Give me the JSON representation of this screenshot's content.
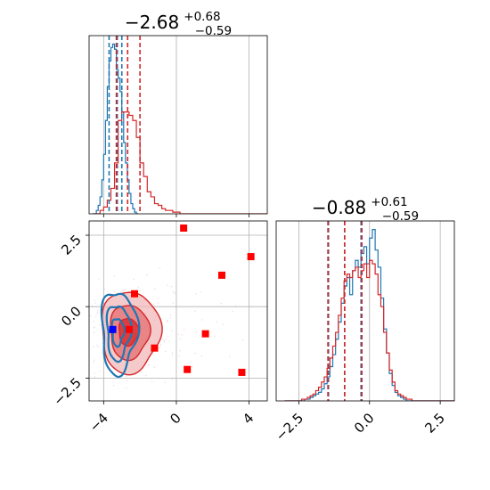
{
  "chart_data": [
    {
      "panel": "marginal-x",
      "type": "histogram",
      "title": {
        "value": "−2.68",
        "plus": "+0.68",
        "minus": "−0.59"
      },
      "xlim": [
        -4.8,
        5.0
      ],
      "ylim": [
        0,
        1.05
      ],
      "grid": true,
      "series": [
        {
          "color": "#1f77b4",
          "bin_start": -4.6,
          "bin_width": 0.1,
          "values": [
            0.0,
            0.0,
            0.02,
            0.05,
            0.1,
            0.2,
            0.35,
            0.55,
            0.75,
            0.9,
            0.98,
            1.0,
            0.97,
            0.85,
            0.8,
            0.72,
            0.6,
            0.42,
            0.3,
            0.2,
            0.12,
            0.06,
            0.03,
            0.01,
            0.0
          ],
          "quantile_lines": [
            -3.7,
            -3.25,
            -3.0
          ]
        },
        {
          "color": "#d62728",
          "bin_start": -4.6,
          "bin_width": 0.2,
          "values": [
            0.0,
            0.0,
            0.02,
            0.04,
            0.08,
            0.15,
            0.3,
            0.55,
            0.6,
            0.6,
            0.58,
            0.55,
            0.45,
            0.3,
            0.22,
            0.13,
            0.1,
            0.06,
            0.05,
            0.03,
            0.02,
            0.02,
            0.01,
            0.01,
            0.0,
            0.0,
            0.0,
            0.0,
            0.0,
            0.0,
            0.0,
            0.0,
            0.0,
            0.0,
            0.0,
            0.0,
            0.0,
            0.0,
            0.0,
            0.0,
            0.0,
            0.0,
            0.0,
            0.0,
            0.0,
            0.0,
            0.0,
            0.0,
            0.0
          ],
          "quantile_lines": [
            -3.3,
            -2.68,
            -2.0
          ]
        }
      ]
    },
    {
      "panel": "marginal-y",
      "type": "histogram",
      "title": {
        "value": "−0.88",
        "plus": "+0.61",
        "minus": "−0.59"
      },
      "xlim": [
        -3.3,
        3.0
      ],
      "ylim": [
        0,
        1.05
      ],
      "grid": true,
      "xticks": [
        "−2.5",
        "0.0",
        "2.5"
      ],
      "series": [
        {
          "color": "#1f77b4",
          "bin_start": -3.0,
          "bin_width": 0.1,
          "values": [
            0,
            0,
            0,
            0,
            0,
            0,
            0,
            0.01,
            0.01,
            0.02,
            0.03,
            0.04,
            0.05,
            0.07,
            0.1,
            0.14,
            0.2,
            0.27,
            0.36,
            0.46,
            0.57,
            0.67,
            0.72,
            0.62,
            0.76,
            0.82,
            0.78,
            0.86,
            0.9,
            0.8,
            0.95,
            1.0,
            0.88,
            0.78,
            0.6,
            0.42,
            0.28,
            0.16,
            0.09,
            0.05,
            0.03,
            0.02,
            0.01,
            0,
            0,
            0,
            0,
            0,
            0,
            0,
            0,
            0,
            0,
            0,
            0,
            0,
            0,
            0,
            0,
            0
          ],
          "quantile_lines": [
            -1.45,
            -0.88,
            -0.3
          ]
        },
        {
          "color": "#d62728",
          "bin_start": -3.0,
          "bin_width": 0.1,
          "values": [
            0,
            0,
            0,
            0,
            0,
            0,
            0.01,
            0.01,
            0.02,
            0.03,
            0.04,
            0.06,
            0.08,
            0.11,
            0.14,
            0.19,
            0.25,
            0.32,
            0.4,
            0.5,
            0.6,
            0.7,
            0.74,
            0.72,
            0.76,
            0.78,
            0.72,
            0.76,
            0.8,
            0.72,
            0.82,
            0.8,
            0.74,
            0.62,
            0.55,
            0.4,
            0.28,
            0.18,
            0.11,
            0.06,
            0.04,
            0.03,
            0.02,
            0.01,
            0.01,
            0,
            0,
            0,
            0,
            0,
            0,
            0,
            0,
            0,
            0,
            0,
            0,
            0,
            0,
            0
          ],
          "quantile_lines": [
            -1.47,
            -0.88,
            -0.27
          ]
        }
      ]
    },
    {
      "panel": "joint",
      "type": "scatter",
      "xlim": [
        -4.8,
        5.0
      ],
      "ylim": [
        -3.3,
        3.0
      ],
      "grid": true,
      "xticks": [
        "−4",
        "0",
        "4"
      ],
      "yticks": [
        "2.5",
        "0.0",
        "−2.5"
      ],
      "truth_markers": {
        "color": "#ff0000",
        "points": [
          [
            0.4,
            2.75
          ],
          [
            4.1,
            1.75
          ],
          [
            2.5,
            1.1
          ],
          [
            -2.3,
            0.45
          ],
          [
            -2.6,
            -0.8
          ],
          [
            1.6,
            -0.95
          ],
          [
            -1.2,
            -1.45
          ],
          [
            0.6,
            -2.2
          ],
          [
            3.6,
            -2.3
          ]
        ]
      },
      "blue_marker": {
        "color": "#0000ff",
        "point": [
          -3.5,
          -0.8
        ]
      },
      "contours": [
        {
          "color": "#d62728",
          "center": [
            -2.68,
            -0.88
          ],
          "sigma": [
            0.64,
            0.6
          ],
          "levels": [
            0.5,
            1.0,
            1.5
          ]
        },
        {
          "color": "#1f77b4",
          "center": [
            -3.25,
            -0.88
          ],
          "sigma": [
            0.38,
            0.6
          ],
          "levels": [
            0.5,
            1.0,
            1.5
          ]
        }
      ]
    }
  ]
}
